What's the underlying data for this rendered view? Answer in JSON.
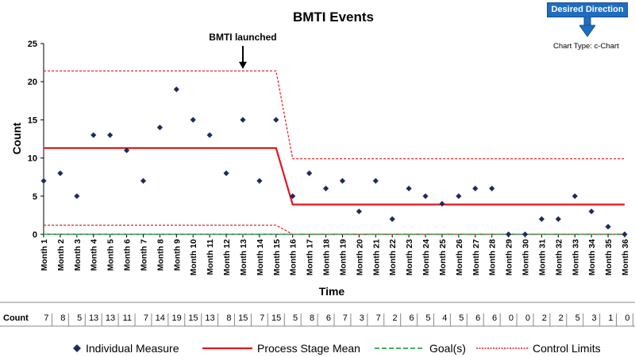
{
  "desired_direction_label": "Desired Direction",
  "chart_type_label": "Chart Type: c-Chart",
  "annotation": "BMTI launched",
  "table_row_label": "Count",
  "legend": {
    "individual": "Individual Measure",
    "mean": "Process Stage Mean",
    "goal": "Goal(s)",
    "limits": "Control Limits"
  },
  "colors": {
    "marker": "#1f2a5c",
    "mean": "#e8141b",
    "goal": "#22a84a",
    "limits": "#e8141b",
    "arrow": "#1f6dc0"
  },
  "chart_data": {
    "type": "scatter",
    "title": "BMTI Events",
    "xlabel": "Time",
    "ylabel": "Count",
    "ylim": [
      0,
      25
    ],
    "yticks": [
      0,
      5,
      10,
      15,
      20,
      25
    ],
    "categories": [
      "Month 1",
      "Month 2",
      "Month 3",
      "Month 4",
      "Month 5",
      "Month 6",
      "Month 7",
      "Month 8",
      "Month 9",
      "Month 10",
      "Month 11",
      "Month 12",
      "Month 13",
      "Month 14",
      "Month 15",
      "Month 16",
      "Month 17",
      "Month 18",
      "Month 19",
      "Month 20",
      "Month 21",
      "Month 22",
      "Month 23",
      "Month 24",
      "Month 25",
      "Month 26",
      "Month 27",
      "Month 28",
      "Month 29",
      "Month 30",
      "Month 31",
      "Month 32",
      "Month 33",
      "Month 34",
      "Month 35",
      "Month 36"
    ],
    "values": [
      7,
      8,
      5,
      13,
      13,
      11,
      7,
      14,
      19,
      15,
      13,
      8,
      15,
      7,
      15,
      5,
      8,
      6,
      7,
      3,
      7,
      2,
      6,
      5,
      4,
      5,
      6,
      6,
      0,
      0,
      2,
      2,
      5,
      3,
      1,
      0
    ],
    "mean": [
      {
        "from": "Month 1",
        "to": "Month 15",
        "value": 11.3
      },
      {
        "from": "Month 16",
        "to": "Month 36",
        "value": 3.9
      }
    ],
    "ucl": [
      {
        "from": "Month 1",
        "to": "Month 15",
        "value": 21.4
      },
      {
        "from": "Month 16",
        "to": "Month 36",
        "value": 9.9
      }
    ],
    "lcl": [
      {
        "from": "Month 1",
        "to": "Month 15",
        "value": 1.2
      },
      {
        "from": "Month 16",
        "to": "Month 36",
        "value": 0
      }
    ],
    "goal": 0,
    "annotation_month": "Month 13"
  }
}
